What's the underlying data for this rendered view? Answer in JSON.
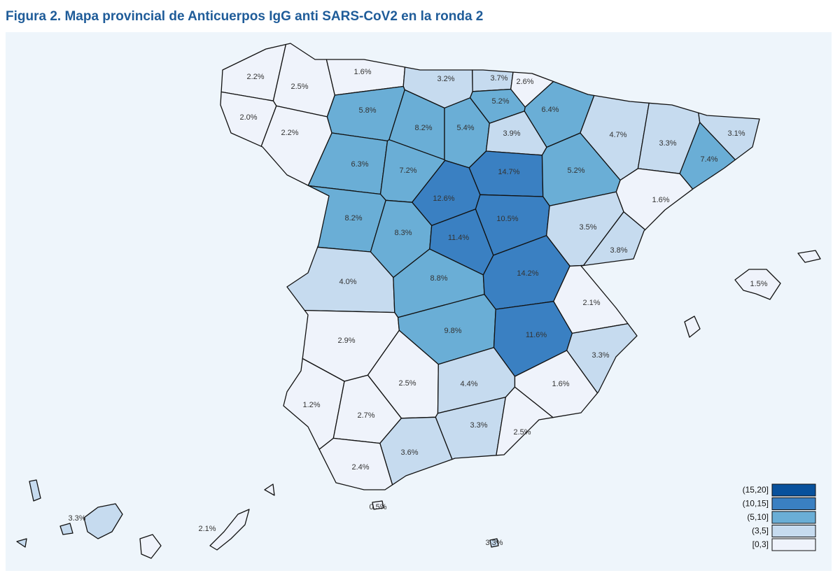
{
  "title": "Figura 2. Mapa provincial de Anticuerpos IgG anti SARS-CoV2 en la ronda 2",
  "legend": [
    {
      "label": "(15,20]",
      "color": "#08519c",
      "from": 15,
      "to": 20
    },
    {
      "label": "(10,15]",
      "color": "#3a80c2",
      "from": 10,
      "to": 15
    },
    {
      "label": "(5,10]",
      "color": "#6aaed6",
      "from": 5,
      "to": 10
    },
    {
      "label": "(3,5]",
      "color": "#c6dbef",
      "from": 3,
      "to": 5
    },
    {
      "label": "[0,3]",
      "color": "#eff3fb",
      "from": 0,
      "to": 3
    }
  ],
  "regions": [
    {
      "value": 2.2,
      "value_label": "2.2%"
    },
    {
      "value": 2.5,
      "value_label": "2.5%"
    },
    {
      "value": 1.6,
      "value_label": "1.6%"
    },
    {
      "value": 3.2,
      "value_label": "3.2%"
    },
    {
      "value": 3.7,
      "value_label": "3.7%"
    },
    {
      "value": 2.6,
      "value_label": "2.6%"
    },
    {
      "value": 5.2,
      "value_label": "5.2%"
    },
    {
      "value": 6.4,
      "value_label": "6.4%"
    },
    {
      "value": 2.0,
      "value_label": "2.0%"
    },
    {
      "value": 2.2,
      "value_label": "2.2%"
    },
    {
      "value": 5.8,
      "value_label": "5.8%"
    },
    {
      "value": 8.2,
      "value_label": "8.2%"
    },
    {
      "value": 5.4,
      "value_label": "5.4%"
    },
    {
      "value": 3.9,
      "value_label": "3.9%"
    },
    {
      "value": 4.7,
      "value_label": "4.7%"
    },
    {
      "value": 3.3,
      "value_label": "3.3%"
    },
    {
      "value": 3.1,
      "value_label": "3.1%"
    },
    {
      "value": 7.4,
      "value_label": "7.4%"
    },
    {
      "value": 6.3,
      "value_label": "6.3%"
    },
    {
      "value": 7.2,
      "value_label": "7.2%"
    },
    {
      "value": 14.7,
      "value_label": "14.7%"
    },
    {
      "value": 5.2,
      "value_label": "5.2%"
    },
    {
      "value": 12.6,
      "value_label": "12.6%"
    },
    {
      "value": 1.6,
      "value_label": "1.6%"
    },
    {
      "value": 8.2,
      "value_label": "8.2%"
    },
    {
      "value": 8.3,
      "value_label": "8.3%"
    },
    {
      "value": 10.5,
      "value_label": "10.5%"
    },
    {
      "value": 11.4,
      "value_label": "11.4%"
    },
    {
      "value": 3.5,
      "value_label": "3.5%"
    },
    {
      "value": 3.8,
      "value_label": "3.8%"
    },
    {
      "value": 4.0,
      "value_label": "4.0%"
    },
    {
      "value": 8.8,
      "value_label": "8.8%"
    },
    {
      "value": 14.2,
      "value_label": "14.2%"
    },
    {
      "value": 2.1,
      "value_label": "2.1%"
    },
    {
      "value": 1.5,
      "value_label": "1.5%"
    },
    {
      "value": 2.9,
      "value_label": "2.9%"
    },
    {
      "value": 9.8,
      "value_label": "9.8%"
    },
    {
      "value": 11.6,
      "value_label": "11.6%"
    },
    {
      "value": 3.3,
      "value_label": "3.3%"
    },
    {
      "value": 2.5,
      "value_label": "2.5%"
    },
    {
      "value": 4.4,
      "value_label": "4.4%"
    },
    {
      "value": 1.6,
      "value_label": "1.6%"
    },
    {
      "value": 1.2,
      "value_label": "1.2%"
    },
    {
      "value": 2.7,
      "value_label": "2.7%"
    },
    {
      "value": 3.3,
      "value_label": "3.3%"
    },
    {
      "value": 2.5,
      "value_label": "2.5%"
    },
    {
      "value": 3.6,
      "value_label": "3.6%"
    },
    {
      "value": 2.4,
      "value_label": "2.4%"
    },
    {
      "value": 0.5,
      "value_label": "0.5%"
    },
    {
      "value": 3.3,
      "value_label": "3.3%"
    },
    {
      "value": 2.1,
      "value_label": "2.1%"
    },
    {
      "value": 3.3,
      "value_label": "3.3%"
    }
  ]
}
